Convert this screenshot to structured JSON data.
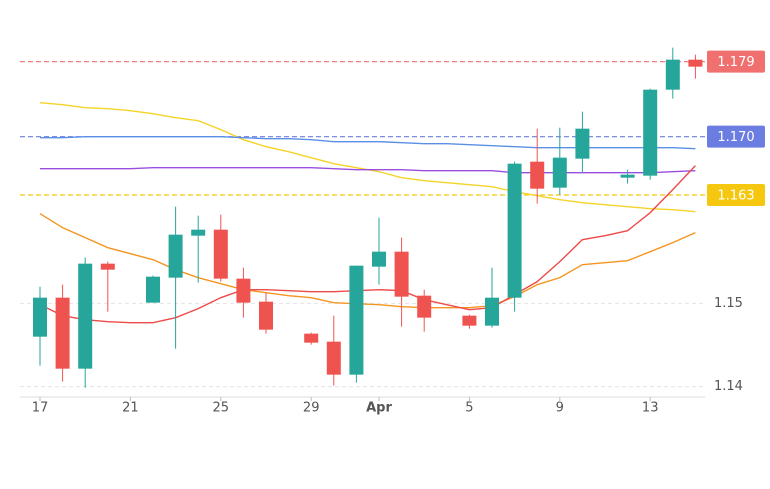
{
  "chart_data": {
    "type": "candlestick",
    "categories": [
      "17",
      null,
      null,
      null,
      "21",
      null,
      null,
      null,
      "25",
      null,
      null,
      null,
      "29",
      null,
      null,
      "Apr",
      null,
      null,
      null,
      "5",
      null,
      null,
      null,
      "9",
      null,
      null,
      null,
      "13",
      null,
      null
    ],
    "open": [
      1.146,
      1.15068,
      1.14216,
      1.15476,
      null,
      1.15008,
      1.15308,
      1.15812,
      1.15884,
      1.15296,
      1.1502,
      null,
      1.14636,
      1.1454,
      1.14144,
      1.1544,
      1.1562,
      1.15092,
      null,
      1.14852,
      1.14732,
      1.15068,
      1.167,
      1.16388,
      1.16736,
      null,
      1.16508,
      1.16532,
      1.17564,
      1.17924
    ],
    "high": [
      1.152,
      1.15224,
      1.15548,
      1.155,
      null,
      1.15332,
      1.1616,
      1.16052,
      1.16064,
      1.15428,
      1.15128,
      null,
      1.14648,
      1.14852,
      1.15452,
      1.16028,
      1.15788,
      1.15164,
      null,
      1.14864,
      1.15428,
      1.167,
      1.17096,
      1.17108,
      1.173,
      null,
      1.16604,
      1.17576,
      1.18068,
      1.17984
    ],
    "low": [
      1.14252,
      1.1406,
      1.13988,
      1.149,
      null,
      1.15008,
      1.14456,
      1.15248,
      1.1526,
      1.14828,
      1.14636,
      null,
      1.14504,
      1.14012,
      1.14048,
      1.15224,
      1.1472,
      1.1466,
      null,
      1.14696,
      1.14708,
      1.149,
      1.16196,
      1.163,
      1.16568,
      null,
      1.16436,
      1.16484,
      1.17456,
      1.17696
    ],
    "close": [
      1.15068,
      1.14216,
      1.15476,
      1.15404,
      null,
      1.1532,
      1.15824,
      1.15884,
      1.15296,
      1.15008,
      1.14684,
      null,
      1.14528,
      1.14144,
      1.15452,
      1.1562,
      1.1508,
      1.14828,
      null,
      1.14732,
      1.15068,
      1.16676,
      1.16376,
      1.16748,
      1.17096,
      null,
      1.16544,
      1.17564,
      1.17924,
      1.1784
    ],
    "up_color": "#26a69a",
    "down_color": "#ef5350",
    "lines": [
      {
        "color": "#f5d327",
        "values": [
          1.17408,
          1.17384,
          1.17348,
          1.17336,
          1.17312,
          1.17276,
          1.17228,
          1.17192,
          1.17084,
          1.16964,
          1.1688,
          1.1682,
          1.16748,
          1.16676,
          1.16628,
          1.1658,
          1.16508,
          1.16472,
          1.16448,
          1.16424,
          1.164,
          1.1634,
          1.16292,
          1.16244,
          1.16208,
          1.16184,
          1.1616,
          1.16136,
          1.16124,
          1.161
        ]
      },
      {
        "color": "#5b8fe6",
        "values": [
          1.16988,
          1.16988,
          1.17,
          1.17,
          1.17,
          1.17,
          1.17,
          1.17,
          1.17,
          1.16988,
          1.16976,
          1.16976,
          1.16964,
          1.1694,
          1.1694,
          1.1694,
          1.16928,
          1.16916,
          1.16916,
          1.16904,
          1.16892,
          1.1688,
          1.16868,
          1.16868,
          1.16868,
          1.16868,
          1.16868,
          1.16868,
          1.16868,
          1.16856
        ]
      },
      {
        "color": "#9b4de0",
        "values": [
          1.16616,
          1.16616,
          1.16616,
          1.16616,
          1.16616,
          1.16628,
          1.16628,
          1.16628,
          1.16628,
          1.16628,
          1.16628,
          1.16628,
          1.16628,
          1.16616,
          1.16604,
          1.16604,
          1.16604,
          1.16592,
          1.16592,
          1.16592,
          1.16592,
          1.16568,
          1.16568,
          1.16568,
          1.16568,
          1.16568,
          1.16568,
          1.16568,
          1.1658,
          1.16592
        ]
      },
      {
        "color": "#f5951f",
        "values": [
          1.16076,
          1.15908,
          1.15788,
          1.15668,
          1.15596,
          1.15524,
          1.15404,
          1.15308,
          1.15236,
          1.15164,
          1.15128,
          1.15092,
          1.15068,
          1.15008,
          1.14996,
          1.14984,
          1.1496,
          1.14948,
          1.14948,
          1.14948,
          1.14972,
          1.1508,
          1.15224,
          1.15308,
          1.15464,
          1.15488,
          1.15512,
          1.1562,
          1.15728,
          1.15848
        ]
      },
      {
        "color": "#ef4a4a",
        "values": [
          1.14984,
          1.14852,
          1.14804,
          1.1478,
          1.14768,
          1.14768,
          1.14828,
          1.14936,
          1.15068,
          1.15164,
          1.15164,
          1.15152,
          1.1514,
          1.1514,
          1.15152,
          1.15164,
          1.15152,
          1.15044,
          1.14984,
          1.14924,
          1.14948,
          1.15104,
          1.1526,
          1.155,
          1.15764,
          1.15812,
          1.15872,
          1.16088,
          1.16364,
          1.16652
        ]
      }
    ],
    "price_lines": [
      {
        "value": 1.179,
        "label": "1.179",
        "color": "#f07070"
      },
      {
        "value": 1.17,
        "label": "1.170",
        "color": "#6b7de0"
      },
      {
        "value": 1.163,
        "label": "1.163",
        "color": "#f5c80f"
      }
    ],
    "ylim": [
      1.139,
      1.181
    ],
    "yticks": [
      1.15,
      1.14
    ],
    "grid": true
  }
}
